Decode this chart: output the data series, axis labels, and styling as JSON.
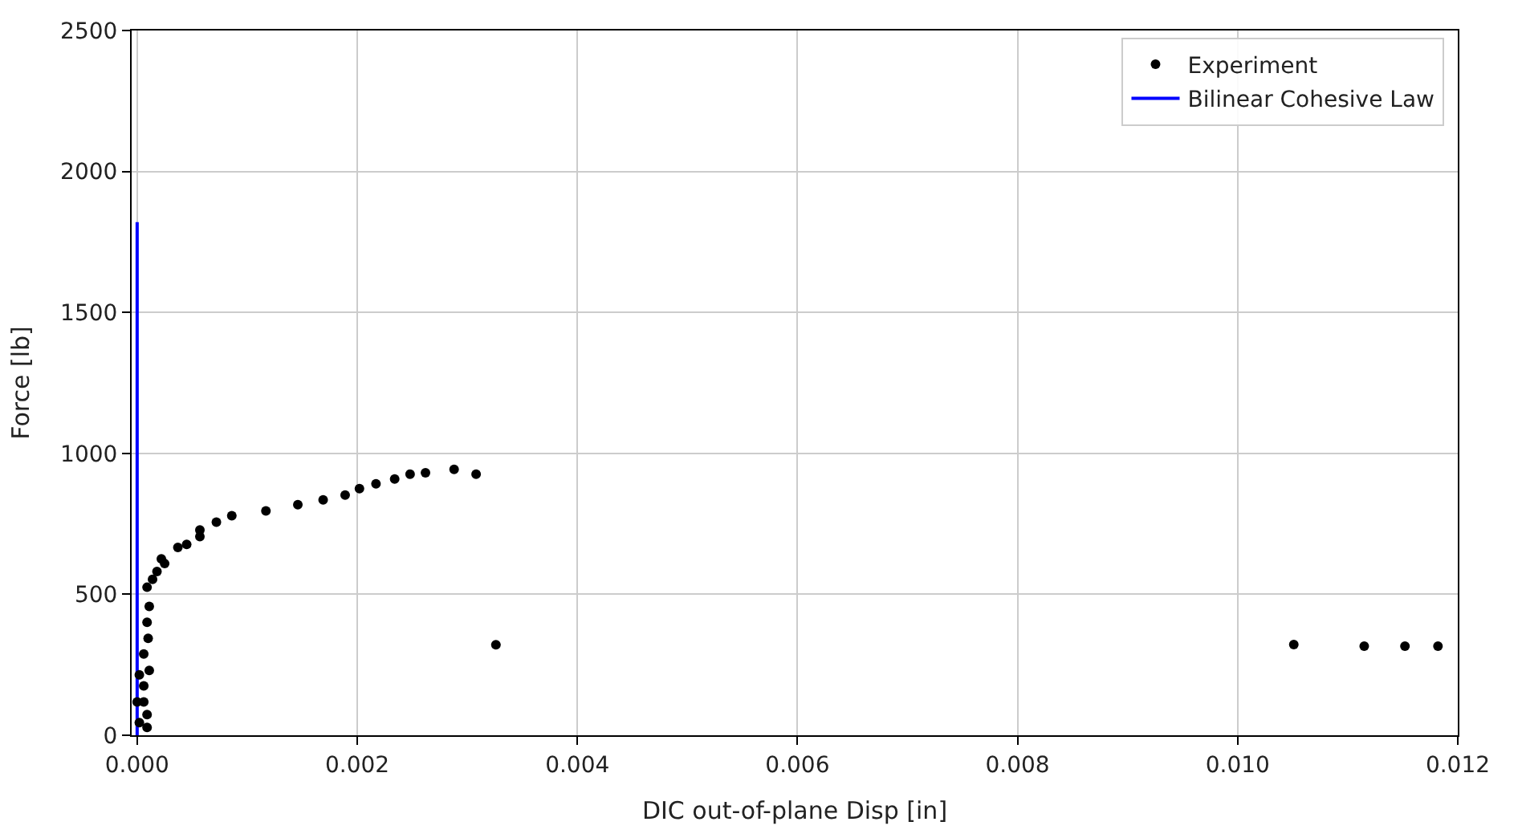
{
  "chart_data": {
    "type": "scatter",
    "xlabel": "DIC out-of-plane Disp [in]",
    "ylabel": "Force [lb]",
    "xlim": [
      -5e-05,
      0.012
    ],
    "xticks": [
      {
        "value": 0,
        "label": "0.000"
      },
      0.002,
      0.004,
      0.006,
      0.008,
      {
        "value": 0.01,
        "label": "0.010"
      },
      0.012
    ],
    "ylim": [
      0,
      2500
    ],
    "yticks": [
      0,
      500,
      1000,
      1500,
      2000,
      2500
    ],
    "grid": true,
    "legend": "top right",
    "series": [
      {
        "name": "Experiment",
        "marker": "circle",
        "color": "#000000",
        "x": [
          0.0,
          2e-05,
          2e-05,
          9e-05,
          6e-05,
          6e-05,
          9e-05,
          0.00011,
          6e-05,
          0.0001,
          9e-05,
          0.00011,
          9e-05,
          0.00014,
          0.00018,
          0.00025,
          0.00022,
          0.00037,
          0.00045,
          0.00057,
          0.00057,
          0.00072,
          0.00086,
          0.00117,
          0.00146,
          0.00169,
          0.00189,
          0.00202,
          0.00217,
          0.00234,
          0.00248,
          0.00262,
          0.00288,
          0.00308,
          0.00326,
          0.01051,
          0.01115,
          0.01152,
          0.01182
        ],
        "values": [
          118,
          45,
          214,
          28,
          118,
          175,
          73,
          230,
          288,
          344,
          401,
          457,
          525,
          553,
          581,
          609,
          626,
          666,
          677,
          705,
          728,
          756,
          779,
          796,
          818,
          835,
          852,
          875,
          892,
          909,
          926,
          931,
          943,
          926,
          321,
          322,
          316,
          316,
          316
        ]
      },
      {
        "name": "Bilinear Cohesive Law",
        "type": "line",
        "color": "#0000ff",
        "line_style": "solid",
        "x": [
          0.0,
          0.0
        ],
        "values": [
          0,
          1820
        ]
      }
    ]
  }
}
